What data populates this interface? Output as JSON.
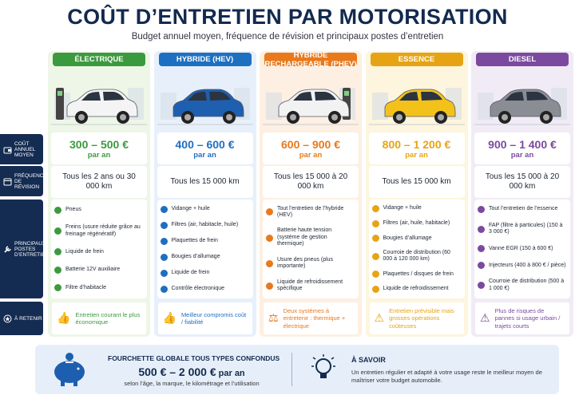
{
  "header": {
    "title": "COÛT D’ENTRETIEN PAR MOTORISATION",
    "subtitle": "Budget annuel moyen, fréquence de révision et principaux postes d’entretien"
  },
  "row_labels": [
    "COÛT ANNUEL MOYEN",
    "FRÉQUENCE DE RÉVISION",
    "PRINCIPAUX POSTES D’ENTRETIEN",
    "À RETENIR"
  ],
  "columns": [
    {
      "name": "ÉLECTRIQUE",
      "cost": "300 – 500 €",
      "cost_unit": "par an",
      "frequency": "Tous les 2 ans ou 30 000 km",
      "items": [
        "Pneus",
        "Freins (usure réduite grâce au freinage régénératif)",
        "Liquide de frein",
        "Batterie 12V auxiliaire",
        "Filtre d’habitacle"
      ],
      "note": "Entretien courant le plus économique"
    },
    {
      "name": "HYBRIDE (HEV)",
      "cost": "400 – 600 €",
      "cost_unit": "par an",
      "frequency": "Tous les 15 000 km",
      "items": [
        "Vidange + huile",
        "Filtres (air, habitacle, huile)",
        "Plaquettes de frein",
        "Bougies d’allumage",
        "Liquide de frein",
        "Contrôle électronique"
      ],
      "note": "Meilleur compromis coût / fiabilité"
    },
    {
      "name": "HYBRIDE RECHARGEABLE (PHEV)",
      "cost": "600 – 900 €",
      "cost_unit": "par an",
      "frequency": "Tous les 15 000 à 20 000 km",
      "items": [
        "Tout l’entretien de l’hybride (HEV)",
        "Batterie haute tension (système de gestion thermique)",
        "Usure des pneus (plus importante)",
        "Liquide de refroidissement spécifique"
      ],
      "note": "Deux systèmes à entretenir : thermique + électrique"
    },
    {
      "name": "ESSENCE",
      "cost": "800 – 1 200 €",
      "cost_unit": "par an",
      "frequency": "Tous les 15 000 km",
      "items": [
        "Vidange + huile",
        "Filtres (air, huile, habitacle)",
        "Bougies d’allumage",
        "Courroie de distribution (60 000 à 120 000 km)",
        "Plaquettes / disques de frein",
        "Liquide de refroidissement"
      ],
      "note": "Entretien prévisible mais grosses opérations coûteuses"
    },
    {
      "name": "DIESEL",
      "cost": "900 – 1 400 €",
      "cost_unit": "par an",
      "frequency": "Tous les 15 000 à 20 000 km",
      "items": [
        "Tout l’entretien de l’essence",
        "FAP (filtre à particules) (150 à 3 000 €)",
        "Vanne EGR (150 à 600 €)",
        "Injecteurs (400 à 800 € / pièce)",
        "Courroie de distribution (500 à 1 000 €)"
      ],
      "note": "Plus de risques de pannes si usage urbain / trajets courts"
    }
  ],
  "footer": {
    "range_title": "FOURCHETTE GLOBALE TOUS TYPES CONFONDUS",
    "range": "500 € – 2 000 €",
    "range_unit": "par an",
    "range_note": "selon l’âge, la marque, le kilométrage et l’utilisation",
    "tip_title": "À SAVOIR",
    "tip_text": "Un entretien régulier et adapté à votre usage reste le meilleur moyen de maîtriser votre budget automobile."
  }
}
